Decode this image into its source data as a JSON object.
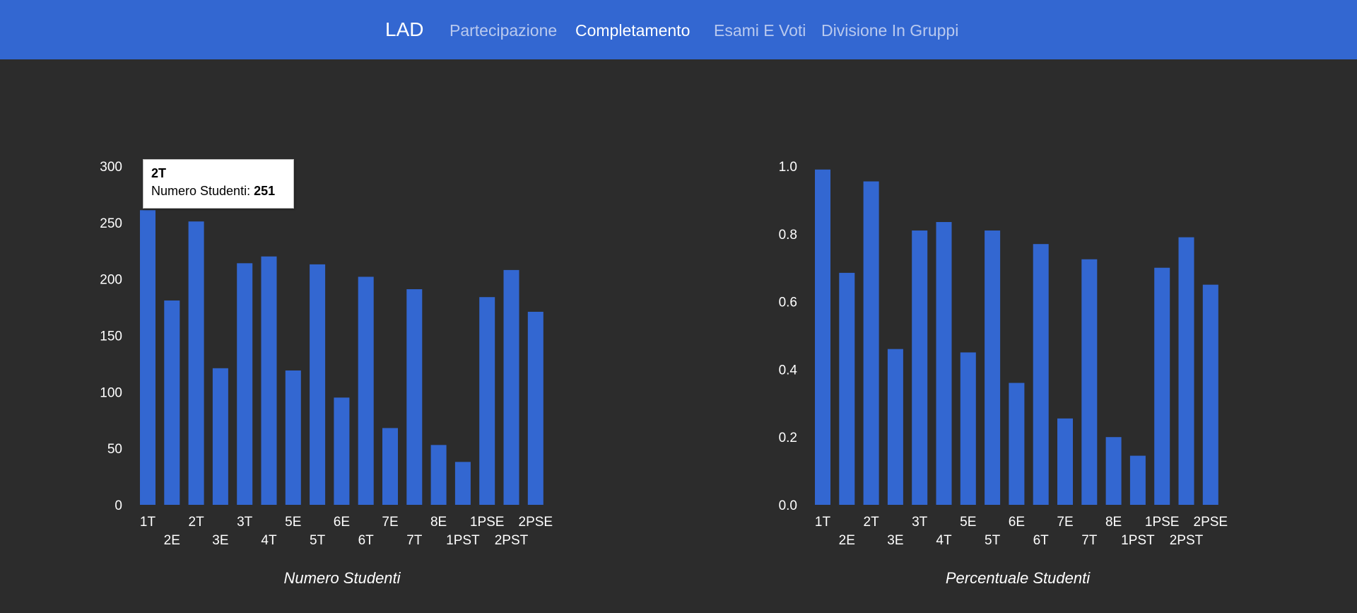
{
  "nav": {
    "brand": "LAD",
    "links": [
      {
        "label": "Partecipazione",
        "active": false
      },
      {
        "label": "Completamento",
        "active": true
      },
      {
        "label": "Esami E Voti",
        "active": false
      },
      {
        "label": "Divisione In Gruppi",
        "active": false
      }
    ]
  },
  "colors": {
    "bar": "#3367d1",
    "background": "#2c2c2c",
    "navbar": "#3367d1"
  },
  "tooltip": {
    "category": "2T",
    "series_label": "Numero Studenti: ",
    "value": "251"
  },
  "chart_data": [
    {
      "type": "bar",
      "title": "Numero Studenti",
      "categories": [
        "1T",
        "2E",
        "2T",
        "3E",
        "3T",
        "4T",
        "5E",
        "5T",
        "6E",
        "6T",
        "7E",
        "7T",
        "8E",
        "1PST",
        "1PSE",
        "2PST",
        "2PSE"
      ],
      "values": [
        261,
        181,
        251,
        121,
        214,
        220,
        119,
        213,
        95,
        202,
        68,
        191,
        53,
        38,
        184,
        208,
        171
      ],
      "ylim": [
        0,
        300
      ],
      "yticks": [
        "0",
        "50",
        "100",
        "150",
        "200",
        "250",
        "300"
      ],
      "grid": false
    },
    {
      "type": "bar",
      "title": "Percentuale Studenti",
      "categories": [
        "1T",
        "2E",
        "2T",
        "3E",
        "3T",
        "4T",
        "5E",
        "5T",
        "6E",
        "6T",
        "7E",
        "7T",
        "8E",
        "1PST",
        "1PSE",
        "2PST",
        "2PSE"
      ],
      "values": [
        0.99,
        0.685,
        0.955,
        0.46,
        0.81,
        0.835,
        0.45,
        0.81,
        0.36,
        0.77,
        0.255,
        0.725,
        0.2,
        0.145,
        0.7,
        0.79,
        0.65
      ],
      "ylim": [
        0,
        1.0
      ],
      "yticks": [
        "0.0",
        "0.2",
        "0.4",
        "0.6",
        "0.8",
        "1.0"
      ],
      "grid": false
    }
  ]
}
